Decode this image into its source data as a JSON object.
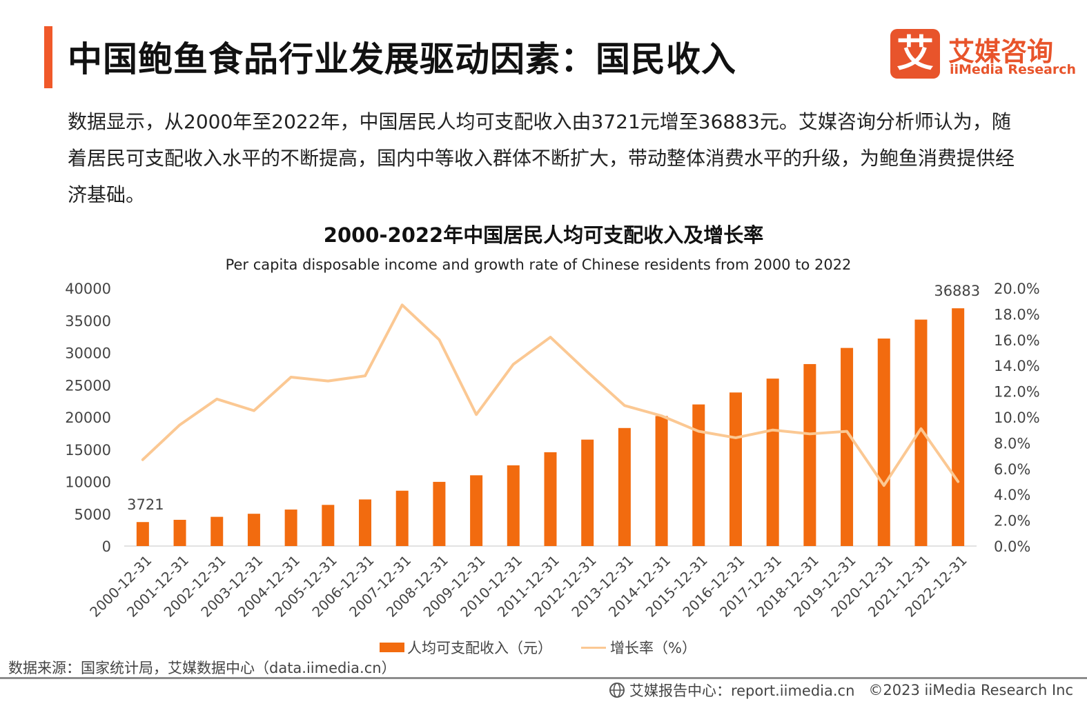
{
  "header": {
    "title": "中国鲍鱼食品行业发展驱动因素：国民收入"
  },
  "logo": {
    "mark": "艾",
    "name_cn": "艾媒咨询",
    "name_en": "iiMedia Research"
  },
  "intro": {
    "text": "数据显示，从2000年至2022年，中国居民人均可支配收入由3721元增至36883元。艾媒咨询分析师认为，随着居民可支配收入水平的不断提高，国内中等收入群体不断扩大，带动整体消费水平的升级，为鲍鱼消费提供经济基础。"
  },
  "chart_data": {
    "type": "bar",
    "title": "2000-2022年中国居民人均可支配收入及增长率",
    "subtitle": "Per capita disposable income and growth rate of Chinese residents from 2000 to 2022",
    "categories": [
      "2000-12-31",
      "2001-12-31",
      "2002-12-31",
      "2003-12-31",
      "2004-12-31",
      "2005-12-31",
      "2006-12-31",
      "2007-12-31",
      "2008-12-31",
      "2009-12-31",
      "2010-12-31",
      "2011-12-31",
      "2012-12-31",
      "2013-12-31",
      "2014-12-31",
      "2015-12-31",
      "2016-12-31",
      "2017-12-31",
      "2018-12-31",
      "2019-12-31",
      "2020-12-31",
      "2021-12-31",
      "2022-12-31"
    ],
    "series": [
      {
        "name": "人均可支配收入（元）",
        "type": "bar",
        "axis": "left",
        "color": "#f26b0f",
        "values": [
          3721,
          4070,
          4532,
          5007,
          5661,
          6385,
          7229,
          8584,
          9957,
          10977,
          12520,
          14551,
          16510,
          18311,
          20167,
          21966,
          23821,
          25974,
          28228,
          30733,
          32189,
          35128,
          36883
        ]
      },
      {
        "name": "增长率（%）",
        "type": "line",
        "axis": "right",
        "color": "#fbc893",
        "values": [
          6.7,
          9.4,
          11.4,
          10.5,
          13.1,
          12.8,
          13.2,
          18.7,
          16.0,
          10.2,
          14.1,
          16.2,
          13.5,
          10.9,
          10.1,
          8.9,
          8.4,
          9.0,
          8.7,
          8.9,
          4.7,
          9.1,
          5.0
        ]
      }
    ],
    "ylim_left": [
      0,
      40000
    ],
    "yticks_left": [
      "0",
      "5000",
      "10000",
      "15000",
      "20000",
      "25000",
      "30000",
      "35000",
      "40000"
    ],
    "ylim_right": [
      0,
      20
    ],
    "yticks_right": [
      "0.0%",
      "2.0%",
      "4.0%",
      "6.0%",
      "8.0%",
      "10.0%",
      "12.0%",
      "14.0%",
      "16.0%",
      "18.0%",
      "20.0%"
    ],
    "data_labels": [
      {
        "index": 0,
        "text": "3721"
      },
      {
        "index": 22,
        "text": "36883"
      }
    ],
    "grid": false,
    "legend_position": "bottom"
  },
  "footer": {
    "source": "数据来源：国家统计局，艾媒数据中心（data.iimedia.cn）",
    "report_center": "艾媒报告中心：report.iimedia.cn",
    "copyright": "©2023  iiMedia Research  Inc"
  }
}
